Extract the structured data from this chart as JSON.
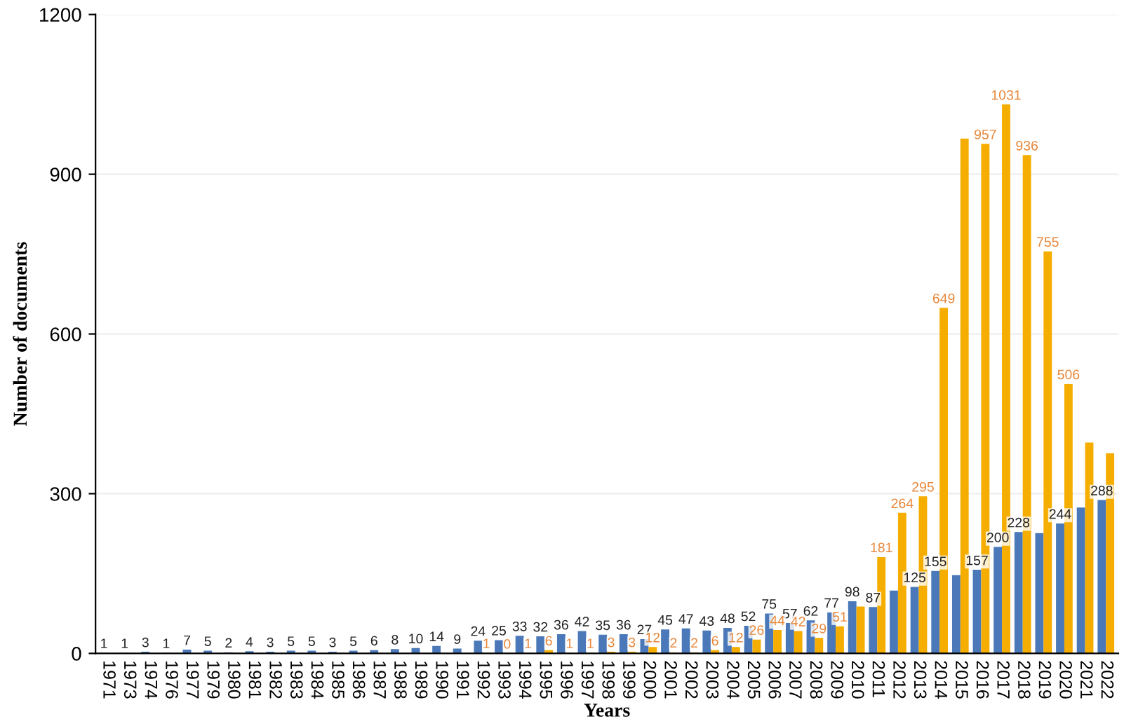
{
  "chart_data": {
    "type": "bar",
    "xlabel": "Years",
    "ylabel": "Number of documents",
    "categories": [
      "1971",
      "1973",
      "1974",
      "1976",
      "1977",
      "1979",
      "1980",
      "1981",
      "1982",
      "1983",
      "1984",
      "1985",
      "1986",
      "1987",
      "1988",
      "1989",
      "1990",
      "1991",
      "1992",
      "1993",
      "1994",
      "1995",
      "1996",
      "1997",
      "1998",
      "1999",
      "2000",
      "2001",
      "2002",
      "2003",
      "2004",
      "2005",
      "2006",
      "2007",
      "2008",
      "2009",
      "2010",
      "2011",
      "2012",
      "2013",
      "2014",
      "2015",
      "2016",
      "2017",
      "2018",
      "2019",
      "2020",
      "2021",
      "2022"
    ],
    "series": [
      {
        "color": "#4a78b8",
        "values": [
          1,
          1,
          3,
          1,
          7,
          5,
          2,
          4,
          3,
          5,
          5,
          3,
          5,
          6,
          8,
          10,
          14,
          9,
          24,
          25,
          33,
          32,
          36,
          42,
          35,
          36,
          27,
          45,
          47,
          43,
          48,
          52,
          75,
          57,
          62,
          77,
          98,
          87,
          118,
          125,
          155,
          147,
          157,
          200,
          228,
          226,
          244,
          274,
          288
        ],
        "value_labels": [
          "1",
          "1",
          "3",
          "1",
          "7",
          "5",
          "2",
          "4",
          "3",
          "5",
          "5",
          "3",
          "5",
          "6",
          "8",
          "10",
          "14",
          "9",
          "24",
          "25",
          "33",
          "32",
          "36",
          "42",
          "35",
          "36",
          "27",
          "45",
          "47",
          "43",
          "48",
          "52",
          "75",
          "57",
          "62",
          "77",
          "98",
          "87",
          null,
          "125",
          "155",
          null,
          "157",
          "200",
          "228",
          null,
          "244",
          null,
          "288"
        ]
      },
      {
        "color": "#f5ad00",
        "values": [
          null,
          null,
          null,
          null,
          null,
          null,
          null,
          null,
          null,
          null,
          null,
          null,
          null,
          null,
          null,
          null,
          null,
          null,
          1,
          0,
          1,
          6,
          1,
          1,
          3,
          3,
          12,
          2,
          2,
          6,
          12,
          26,
          44,
          42,
          29,
          51,
          88,
          181,
          264,
          295,
          649,
          967,
          957,
          1031,
          936,
          755,
          506,
          396,
          376
        ],
        "value_labels": [
          null,
          null,
          null,
          null,
          null,
          null,
          null,
          null,
          null,
          null,
          null,
          null,
          null,
          null,
          null,
          null,
          null,
          null,
          "1",
          "0",
          "1",
          "6",
          "1",
          "1",
          "3",
          "3",
          "12",
          "2",
          "2",
          "6",
          "12",
          "26",
          "44",
          "42",
          "29",
          "51",
          null,
          "181",
          "264",
          "295",
          "649",
          null,
          "957",
          "1031",
          "936",
          "755",
          "506",
          null,
          null
        ]
      }
    ],
    "ylim": [
      0,
      1200
    ],
    "yticks": [
      0,
      300,
      600,
      900,
      1200
    ],
    "grid": "y"
  }
}
